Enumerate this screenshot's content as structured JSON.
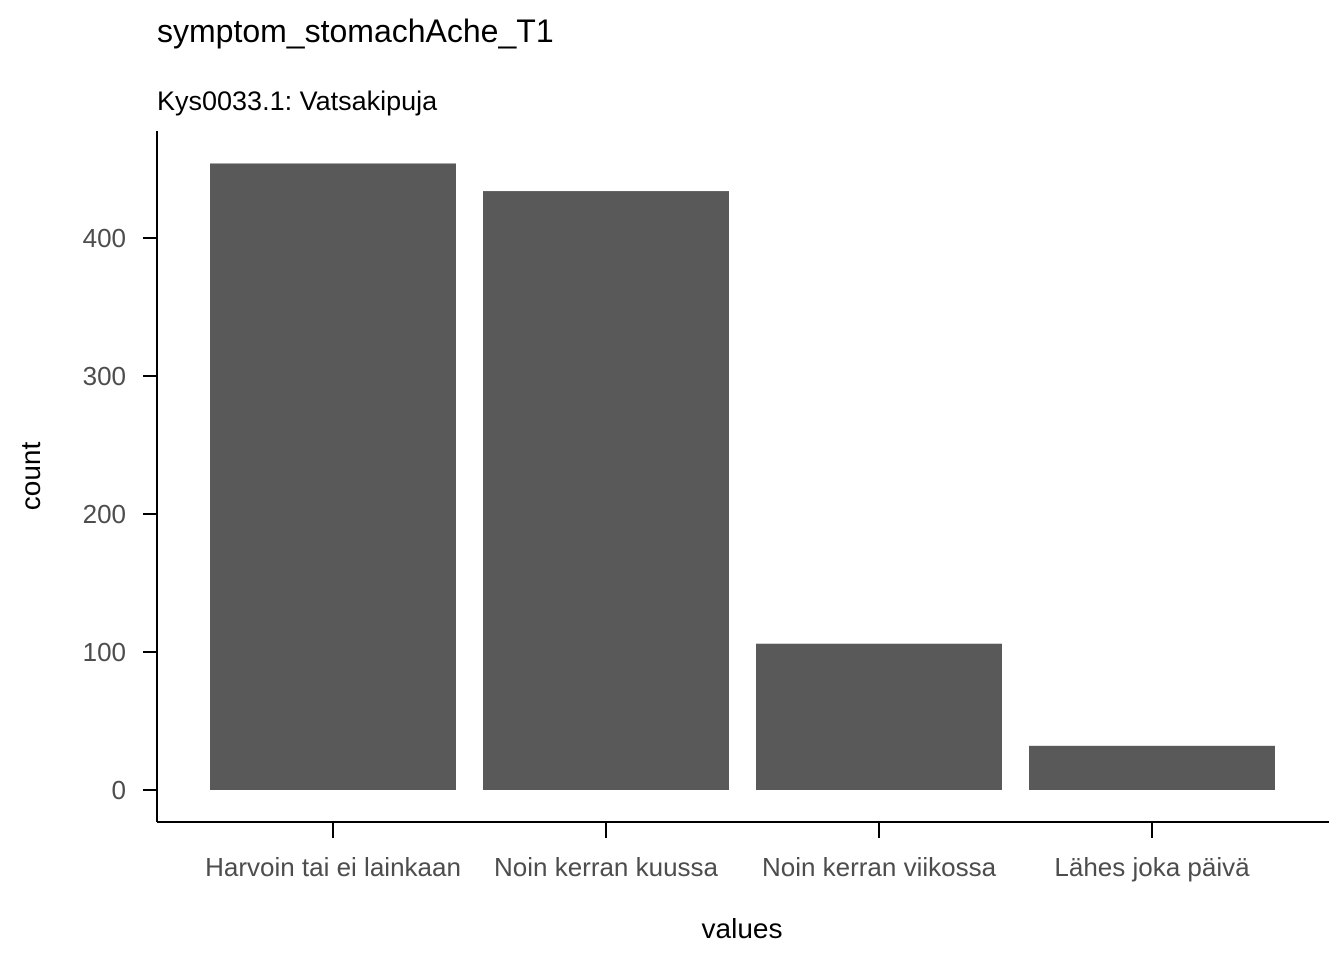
{
  "chart_data": {
    "type": "bar",
    "title": "symptom_stomachAche_T1",
    "subtitle": "Kys0033.1: Vatsakipuja",
    "xlabel": "values",
    "ylabel": "count",
    "categories": [
      "Harvoin tai ei lainkaan",
      "Noin kerran kuussa",
      "Noin kerran viikossa",
      "Lähes joka päivä"
    ],
    "values": [
      454,
      434,
      106,
      32
    ],
    "yticks": [
      "0",
      "100",
      "200",
      "300",
      "400"
    ],
    "ylim": [
      0,
      477
    ],
    "grid": false,
    "bar_color": "#595959",
    "axis_color": "#000000",
    "tick_label_color": "#4d4d4d"
  }
}
